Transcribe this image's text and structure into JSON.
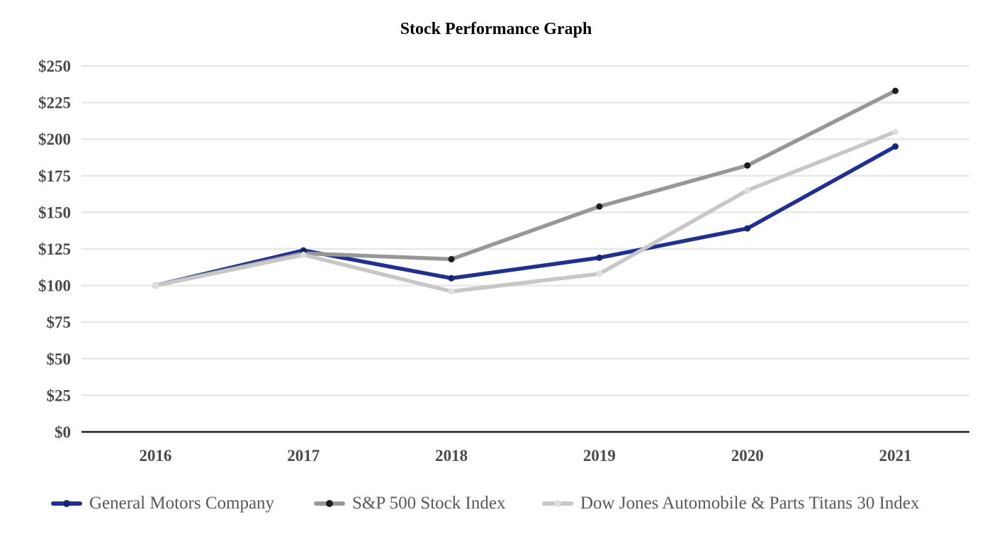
{
  "chart_data": {
    "type": "line",
    "title": "Stock Performance Graph",
    "categories": [
      "2016",
      "2017",
      "2018",
      "2019",
      "2020",
      "2021"
    ],
    "series": [
      {
        "name": "General Motors Company",
        "color": "#1e3096",
        "marker_color": "#16257c",
        "values": [
          100,
          124,
          105,
          119,
          139,
          195
        ]
      },
      {
        "name": "S&P 500 Stock Index",
        "color": "#979797",
        "marker_color": "#1c1c1c",
        "values": [
          100,
          122,
          118,
          154,
          182,
          233
        ]
      },
      {
        "name": "Dow Jones Automobile & Parts Titans 30 Index",
        "color": "#c7c7c7",
        "marker_color": "#dfdfdf",
        "values": [
          100,
          121,
          96,
          108,
          165,
          205
        ]
      }
    ],
    "ylim": [
      0,
      250
    ],
    "y_ticks": [
      "$0",
      "$25",
      "$50",
      "$75",
      "$100",
      "$125",
      "$150",
      "$175",
      "$200",
      "$225",
      "$250"
    ],
    "xlabel": "",
    "ylabel": "",
    "grid": "horizontal",
    "legend_position": "bottom"
  },
  "styles": {
    "grid_color": "#e8e8e8",
    "axis_color": "#1f1f1f",
    "tick_label_color": "#4a4a4a",
    "legend_text_color": "#595959",
    "background": "#ffffff"
  }
}
